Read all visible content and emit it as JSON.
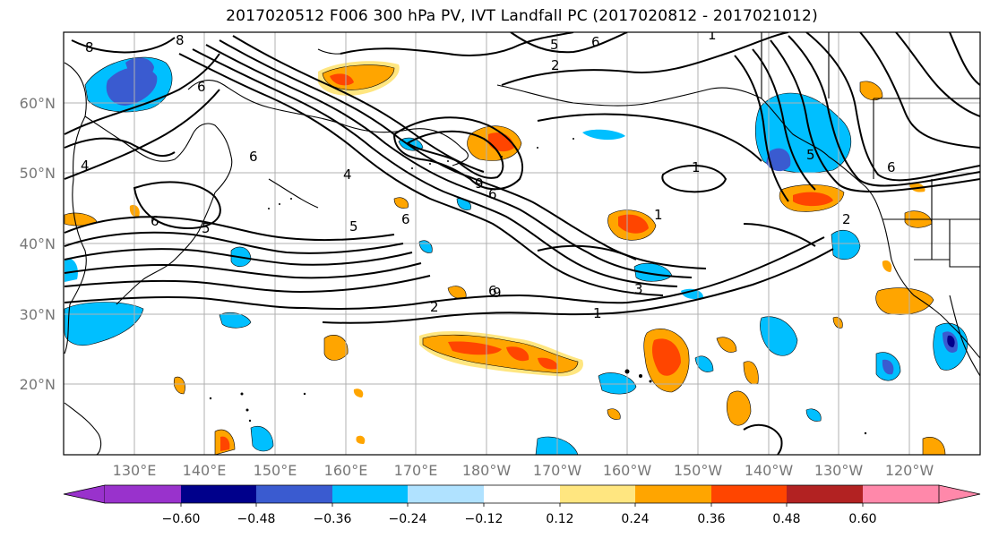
{
  "title": "2017020512 F006 300 hPa PV, IVT Landfall PC (2017020812 - 2017021012)",
  "lat_labels": [
    "60°N",
    "50°N",
    "40°N",
    "30°N",
    "20°N"
  ],
  "lon_labels": [
    "130°E",
    "140°E",
    "150°E",
    "160°E",
    "170°E",
    "180°W",
    "170°W",
    "160°W",
    "150°W",
    "140°W",
    "130°W",
    "120°W"
  ],
  "colorbar": {
    "colors": [
      "#9932cc",
      "#00008b",
      "#3a5bd0",
      "#00bfff",
      "#b0e2ff",
      "#ffffff",
      "#ffe680",
      "#ffa500",
      "#ff4500",
      "#b22222",
      "#ff88aa"
    ],
    "tick_labels": [
      "−0.60",
      "−0.48",
      "−0.36",
      "−0.24",
      "−0.12",
      "0.12",
      "0.24",
      "0.36",
      "0.48",
      "0.60"
    ]
  },
  "contour_labels": [
    "8",
    "8",
    "6",
    "4",
    "6",
    "6",
    "4",
    "5",
    "6",
    "6",
    "9",
    "6",
    "1",
    "1",
    "2",
    "3",
    "1",
    "2",
    "5",
    "6",
    "6",
    "1",
    "2",
    "5",
    "5",
    "9"
  ],
  "colors": {
    "land_line": "#000000",
    "contour": "#000000",
    "grid": "#b0b0b0",
    "axis_label": "#777777"
  }
}
